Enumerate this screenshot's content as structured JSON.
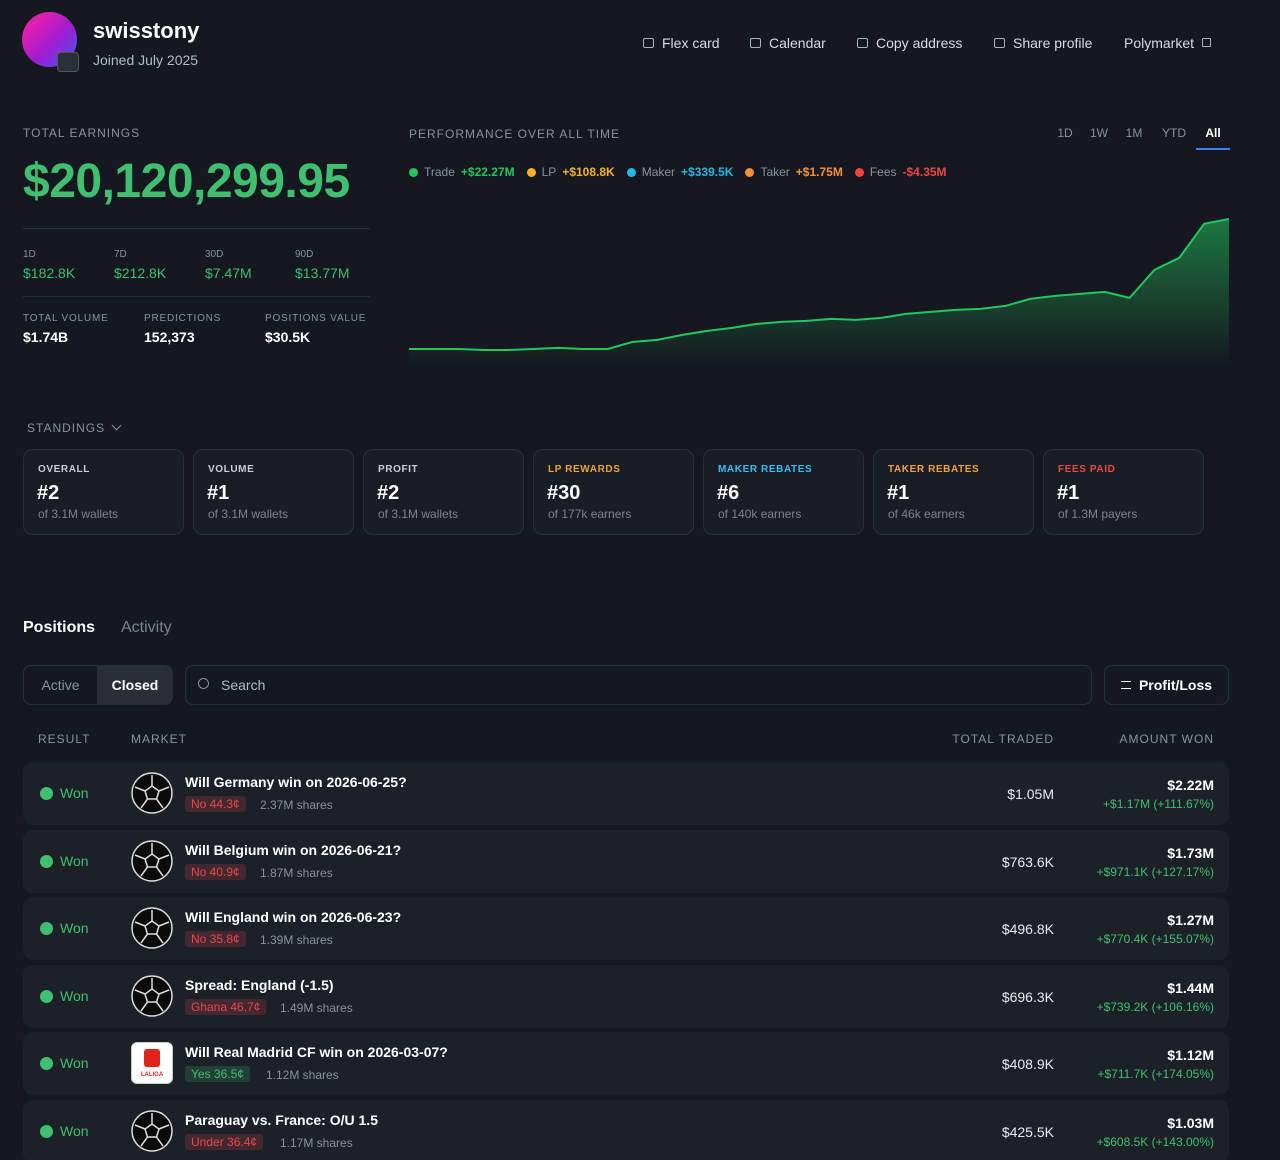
{
  "profile": {
    "username": "swisstony",
    "joined": "Joined July 2025"
  },
  "nav": [
    "Flex card",
    "Calendar",
    "Copy address",
    "Share profile",
    "Polymarket"
  ],
  "earnings": {
    "label": "TOTAL EARNINGS",
    "total": "$20,120,299.95",
    "periods": [
      {
        "label": "1D",
        "value": "$182.8K"
      },
      {
        "label": "7D",
        "value": "$212.8K"
      },
      {
        "label": "30D",
        "value": "$7.47M"
      },
      {
        "label": "90D",
        "value": "$13.77M"
      }
    ],
    "stats": [
      {
        "label": "TOTAL VOLUME",
        "value": "$1.74B"
      },
      {
        "label": "PREDICTIONS",
        "value": "152,373"
      },
      {
        "label": "POSITIONS VALUE",
        "value": "$30.5K"
      }
    ]
  },
  "performance": {
    "title": "PERFORMANCE OVER ALL TIME",
    "ranges": [
      "1D",
      "1W",
      "1M",
      "YTD",
      "All"
    ],
    "selected_range": "All",
    "legend": [
      {
        "name": "Trade",
        "value": "+$22.27M",
        "color": "#22c55e"
      },
      {
        "name": "LP",
        "value": "+$108.8K",
        "color": "#f5b324"
      },
      {
        "name": "Maker",
        "value": "+$339.5K",
        "color": "#22b8e6"
      },
      {
        "name": "Taker",
        "value": "+$1.75M",
        "color": "#f7913a"
      },
      {
        "name": "Fees",
        "value": "-$4.35M",
        "color": "#ef4444"
      }
    ],
    "chart_data": {
      "type": "line",
      "color": "#22c55e",
      "values": [
        0,
        0,
        0,
        -0.16,
        -0.16,
        0,
        0.16,
        0,
        0,
        1.09,
        1.4,
        2.17,
        2.79,
        3.26,
        3.88,
        4.19,
        4.34,
        4.65,
        4.5,
        4.81,
        5.43,
        5.74,
        6.05,
        6.2,
        6.67,
        7.75,
        8.22,
        8.53,
        8.84,
        7.91,
        12.25,
        14.11,
        19.38,
        20.12
      ]
    }
  },
  "standings": {
    "title": "STANDINGS",
    "cards": [
      {
        "title": "OVERALL",
        "rank": "#2",
        "sub": "of 3.1M wallets",
        "color": "#c9ced6"
      },
      {
        "title": "VOLUME",
        "rank": "#1",
        "sub": "of 3.1M wallets",
        "color": "#c9ced6"
      },
      {
        "title": "PROFIT",
        "rank": "#2",
        "sub": "of 3.1M wallets",
        "color": "#c9ced6"
      },
      {
        "title": "LP REWARDS",
        "rank": "#30",
        "sub": "of 177k earners",
        "color": "#e8a33b"
      },
      {
        "title": "MAKER REBATES",
        "rank": "#6",
        "sub": "of 140k earners",
        "color": "#38bdf8"
      },
      {
        "title": "TAKER REBATES",
        "rank": "#1",
        "sub": "of 46k earners",
        "color": "#f59e42"
      },
      {
        "title": "FEES PAID",
        "rank": "#1",
        "sub": "of 1.3M payers",
        "color": "#e5484d"
      }
    ]
  },
  "positions": {
    "tabs": [
      "Positions",
      "Activity"
    ],
    "filters": [
      "Active",
      "Closed"
    ],
    "search": "Search",
    "sort": "Profit/Loss",
    "columns": [
      "RESULT",
      "MARKET",
      "TOTAL TRADED",
      "AMOUNT WON"
    ],
    "rows": [
      {
        "result": "Won",
        "market": "Will Germany win on 2026-06-25?",
        "outcome": "No 44.3¢",
        "outcome_color": "#e5484d",
        "shares": "2.37M shares",
        "total": "$1.05M",
        "won": "$2.22M",
        "change": "+$1.17M (+111.67%)"
      },
      {
        "result": "Won",
        "market": "Will Belgium win on 2026-06-21?",
        "outcome": "No 40.9¢",
        "outcome_color": "#e5484d",
        "shares": "1.87M shares",
        "total": "$763.6K",
        "won": "$1.73M",
        "change": "+$971.1K (+127.17%)"
      },
      {
        "result": "Won",
        "market": "Will England win on 2026-06-23?",
        "outcome": "No 35.8¢",
        "outcome_color": "#e5484d",
        "shares": "1.39M shares",
        "total": "$496.8K",
        "won": "$1.27M",
        "change": "+$770.4K (+155.07%)"
      },
      {
        "result": "Won",
        "market": "Spread: England (-1.5)",
        "outcome": "Ghana 46.7¢",
        "outcome_color": "#e5484d",
        "shares": "1.49M shares",
        "total": "$696.3K",
        "won": "$1.44M",
        "change": "+$739.2K (+106.16%)"
      },
      {
        "result": "Won",
        "market": "Will Real Madrid CF win on 2026-03-07?",
        "logo": "LALIGA",
        "outcome": "Yes 36.5¢",
        "outcome_color": "#3fbf6f",
        "shares": "1.12M shares",
        "total": "$408.9K",
        "won": "$1.12M",
        "change": "+$711.7K (+174.05%)"
      },
      {
        "result": "Won",
        "market": "Paraguay vs. France: O/U 1.5",
        "outcome": "Under 36.4¢",
        "outcome_color": "#e5484d",
        "shares": "1.17M shares",
        "total": "$425.5K",
        "won": "$1.03M",
        "change": "+$608.5K (+143.00%)"
      }
    ]
  }
}
